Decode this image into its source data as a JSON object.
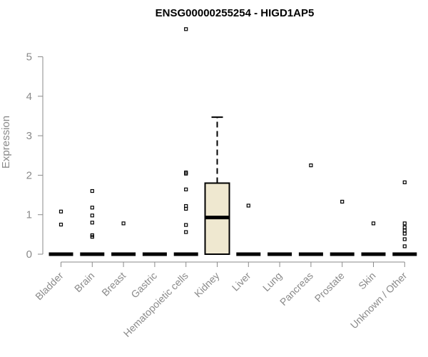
{
  "chart_data": {
    "type": "box",
    "title": "ENSG00000255254 - HIGD1AP5",
    "xlabel": "",
    "ylabel": "Expression",
    "ylim": [
      0,
      5.7
    ],
    "yticks": [
      0,
      1,
      2,
      3,
      4,
      5
    ],
    "categories": [
      "Bladder",
      "Brain",
      "Breast",
      "Gastric",
      "Hematopoietic cells",
      "Kidney",
      "Liver",
      "Lung",
      "Pancreas",
      "Prostate",
      "Skin",
      "Unknown / Other"
    ],
    "boxes": [
      {
        "category": "Bladder",
        "median": 0,
        "q1": 0,
        "q3": 0,
        "whisker_low": 0,
        "whisker_high": 0,
        "outliers": [
          1.08,
          0.75
        ]
      },
      {
        "category": "Brain",
        "median": 0,
        "q1": 0,
        "q3": 0,
        "whisker_low": 0,
        "whisker_high": 0,
        "outliers": [
          1.6,
          1.18,
          0.98,
          0.8,
          0.48,
          0.44
        ]
      },
      {
        "category": "Breast",
        "median": 0,
        "q1": 0,
        "q3": 0,
        "whisker_low": 0,
        "whisker_high": 0,
        "outliers": [
          0.78
        ]
      },
      {
        "category": "Gastric",
        "median": 0,
        "q1": 0,
        "q3": 0,
        "whisker_low": 0,
        "whisker_high": 0,
        "outliers": []
      },
      {
        "category": "Hematopoietic cells",
        "median": 0,
        "q1": 0,
        "q3": 0,
        "whisker_low": 0,
        "whisker_high": 0,
        "outliers": [
          5.7,
          2.07,
          2.04,
          1.64,
          1.22,
          1.15,
          0.74,
          0.56
        ]
      },
      {
        "category": "Kidney",
        "median": 0.93,
        "q1": 0,
        "q3": 1.8,
        "whisker_low": 0,
        "whisker_high": 3.47,
        "outliers": []
      },
      {
        "category": "Liver",
        "median": 0,
        "q1": 0,
        "q3": 0,
        "whisker_low": 0,
        "whisker_high": 0,
        "outliers": [
          1.23
        ]
      },
      {
        "category": "Lung",
        "median": 0,
        "q1": 0,
        "q3": 0,
        "whisker_low": 0,
        "whisker_high": 0,
        "outliers": []
      },
      {
        "category": "Pancreas",
        "median": 0,
        "q1": 0,
        "q3": 0,
        "whisker_low": 0,
        "whisker_high": 0,
        "outliers": [
          2.25
        ]
      },
      {
        "category": "Prostate",
        "median": 0,
        "q1": 0,
        "q3": 0,
        "whisker_low": 0,
        "whisker_high": 0,
        "outliers": [
          1.33
        ]
      },
      {
        "category": "Skin",
        "median": 0,
        "q1": 0,
        "q3": 0,
        "whisker_low": 0,
        "whisker_high": 0,
        "outliers": [
          0.78
        ]
      },
      {
        "category": "Unknown / Other",
        "median": 0,
        "q1": 0,
        "q3": 0,
        "whisker_low": 0,
        "whisker_high": 0,
        "outliers": [
          1.82,
          0.78,
          0.68,
          0.6,
          0.52,
          0.38,
          0.2
        ]
      }
    ],
    "colors": {
      "kidney_box_fill": "#efe8d0",
      "axis": "#8a8a8a",
      "marks": "#000000"
    },
    "grid": false,
    "legend": "none"
  }
}
